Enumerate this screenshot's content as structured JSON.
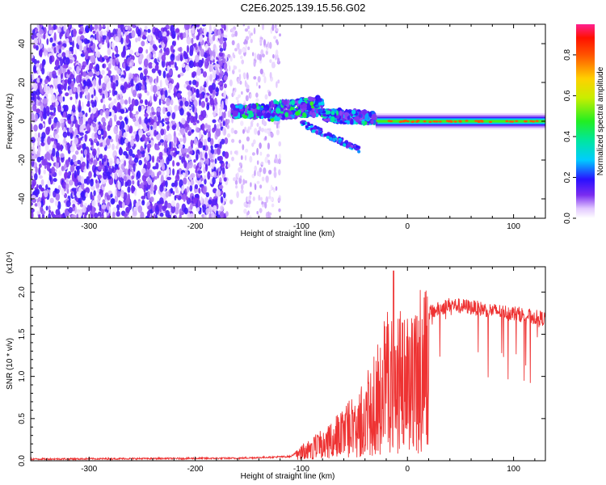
{
  "figure": {
    "title": "C2E6.2025.139.15.56.G02"
  },
  "chart_data": [
    {
      "type": "heatmap",
      "title": "C2E6.2025.139.15.56.G02",
      "xlabel": "Height of straight line (km)",
      "ylabel": "Frequency (Hz)",
      "xlim": [
        -355,
        130
      ],
      "ylim": [
        -50,
        50
      ],
      "x_ticks": [
        -300,
        -200,
        -100,
        0,
        100
      ],
      "y_ticks": [
        -40,
        -20,
        0,
        20,
        40
      ],
      "colorbar": {
        "label": "Normalized spectral amplitude",
        "range": [
          0,
          0.95
        ],
        "ticks": [
          0.0,
          0.2,
          0.4,
          0.6,
          0.8
        ]
      },
      "regions": [
        {
          "name": "noise",
          "x_range": [
            -355,
            -170
          ],
          "freq_range": [
            -50,
            50
          ],
          "amplitude": 0.1
        },
        {
          "name": "sparse noise",
          "x_range": [
            -170,
            -120
          ],
          "freq_range": [
            -50,
            50
          ],
          "amplitude": 0.04
        },
        {
          "name": "signal band",
          "x_range": [
            -165,
            -30
          ],
          "freq_range": [
            -5,
            12
          ],
          "amplitude": 0.25
        },
        {
          "name": "tone",
          "x_range": [
            -30,
            130
          ],
          "freq": 0,
          "amplitude": 0.55
        }
      ]
    },
    {
      "type": "line",
      "xlabel": "Height of straight line (km)",
      "ylabel": "SNR (10 * v/v)",
      "y_multiplier": "(x10⁴)",
      "xlim": [
        -355,
        130
      ],
      "ylim": [
        0,
        2.3
      ],
      "x_ticks": [
        -300,
        -200,
        -100,
        0,
        100
      ],
      "y_ticks": [
        0.0,
        0.5,
        1.0,
        1.5,
        2.0
      ],
      "color": "#ee3333",
      "envelope": [
        {
          "x": -355,
          "y": 0.02
        },
        {
          "x": -160,
          "y": 0.03
        },
        {
          "x": -110,
          "y": 0.05
        },
        {
          "x": -100,
          "y": 0.15
        },
        {
          "x": -80,
          "y": 0.3
        },
        {
          "x": -60,
          "y": 0.5
        },
        {
          "x": -40,
          "y": 0.8
        },
        {
          "x": -25,
          "y": 1.2
        },
        {
          "x": -15,
          "y": 1.6
        },
        {
          "x": 0,
          "y": 1.45
        },
        {
          "x": 20,
          "y": 1.75
        },
        {
          "x": 40,
          "y": 1.85
        },
        {
          "x": 60,
          "y": 1.82
        },
        {
          "x": 80,
          "y": 1.78
        },
        {
          "x": 100,
          "y": 1.75
        },
        {
          "x": 130,
          "y": 1.68
        }
      ],
      "peak": {
        "x": -13,
        "y": 2.25
      }
    }
  ]
}
